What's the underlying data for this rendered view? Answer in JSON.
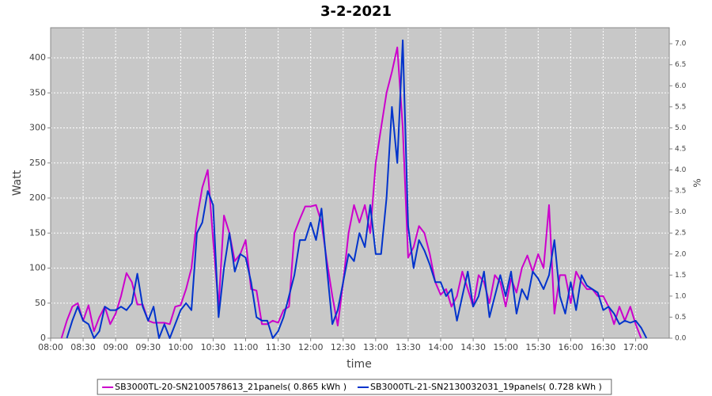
{
  "chart_data": {
    "type": "line",
    "title": "3-2-2021",
    "xlabel": "time",
    "ylabel": "Watt",
    "y2label": "%",
    "x": [
      "08:10",
      "08:15",
      "08:20",
      "08:25",
      "08:30",
      "08:35",
      "08:40",
      "08:45",
      "08:50",
      "08:55",
      "09:00",
      "09:05",
      "09:10",
      "09:15",
      "09:20",
      "09:25",
      "09:30",
      "09:35",
      "09:40",
      "09:45",
      "09:50",
      "09:55",
      "10:00",
      "10:05",
      "10:10",
      "10:15",
      "10:20",
      "10:25",
      "10:30",
      "10:35",
      "10:40",
      "10:45",
      "10:50",
      "10:55",
      "11:00",
      "11:05",
      "11:10",
      "11:15",
      "11:20",
      "11:25",
      "11:30",
      "11:35",
      "11:40",
      "11:45",
      "11:50",
      "11:55",
      "12:00",
      "12:05",
      "12:10",
      "12:15",
      "12:20",
      "12:25",
      "12:30",
      "12:35",
      "12:40",
      "12:45",
      "12:50",
      "12:55",
      "13:00",
      "13:05",
      "13:10",
      "13:15",
      "13:20",
      "13:25",
      "13:30",
      "13:35",
      "13:40",
      "13:45",
      "13:50",
      "13:55",
      "14:00",
      "14:05",
      "14:10",
      "14:15",
      "14:20",
      "14:25",
      "14:30",
      "14:35",
      "14:40",
      "14:45",
      "14:50",
      "14:55",
      "15:00",
      "15:05",
      "15:10",
      "15:15",
      "15:20",
      "15:25",
      "15:30",
      "15:35",
      "15:40",
      "15:45",
      "15:50",
      "15:55",
      "16:00",
      "16:05",
      "16:10",
      "16:15",
      "16:20",
      "16:25",
      "16:30",
      "16:35",
      "16:40",
      "16:45",
      "16:50",
      "16:55",
      "17:00",
      "17:05",
      "17:10"
    ],
    "series": [
      {
        "name": "SB3000TL-20-SN2100578613_21panels( 0.865 kWh )",
        "color": "#cc00cc",
        "values": [
          0,
          25,
          45,
          50,
          25,
          47,
          10,
          30,
          45,
          20,
          35,
          60,
          93,
          80,
          48,
          48,
          25,
          22,
          22,
          22,
          20,
          45,
          47,
          70,
          100,
          170,
          215,
          240,
          140,
          45,
          175,
          150,
          110,
          120,
          140,
          70,
          68,
          20,
          20,
          25,
          22,
          40,
          45,
          150,
          170,
          188,
          188,
          190,
          165,
          110,
          60,
          18,
          80,
          150,
          190,
          165,
          190,
          150,
          250,
          300,
          350,
          380,
          415,
          300,
          115,
          130,
          160,
          150,
          120,
          80,
          62,
          70,
          45,
          60,
          95,
          70,
          45,
          90,
          80,
          50,
          90,
          80,
          45,
          85,
          65,
          100,
          118,
          95,
          120,
          100,
          190,
          35,
          90,
          90,
          50,
          95,
          80,
          70,
          70,
          60,
          60,
          45,
          20,
          45,
          25,
          45,
          20,
          0,
          null
        ]
      },
      {
        "name": "SB3000TL-21-SN2130032031_19panels( 0.728 kWh )",
        "color": "#0033cc",
        "values": [
          null,
          0,
          25,
          45,
          25,
          20,
          0,
          10,
          45,
          40,
          40,
          45,
          40,
          50,
          92,
          45,
          25,
          45,
          0,
          20,
          0,
          20,
          40,
          50,
          40,
          150,
          165,
          210,
          190,
          30,
          100,
          150,
          95,
          120,
          115,
          80,
          30,
          25,
          25,
          0,
          10,
          30,
          60,
          90,
          140,
          140,
          165,
          140,
          185,
          100,
          20,
          40,
          80,
          120,
          110,
          150,
          130,
          190,
          120,
          120,
          200,
          330,
          250,
          425,
          160,
          100,
          140,
          125,
          105,
          80,
          80,
          60,
          70,
          25,
          60,
          95,
          45,
          60,
          95,
          30,
          60,
          90,
          60,
          95,
          35,
          70,
          55,
          95,
          85,
          70,
          90,
          140,
          60,
          35,
          80,
          40,
          90,
          75,
          70,
          65,
          40,
          45,
          35,
          20,
          25,
          22,
          25,
          15,
          0
        ]
      }
    ],
    "xlim": [
      "08:00",
      "17:31"
    ],
    "xticks": [
      "08:00",
      "08:30",
      "09:00",
      "09:30",
      "10:00",
      "10:30",
      "11:00",
      "11:30",
      "12:00",
      "12:30",
      "13:00",
      "13:30",
      "14:00",
      "14:30",
      "15:00",
      "15:30",
      "16:00",
      "16:30",
      "17:00"
    ],
    "ylim": [
      0,
      443
    ],
    "yticks": [
      0,
      50,
      100,
      150,
      200,
      250,
      300,
      350,
      400
    ],
    "y2lim": [
      0,
      7.38
    ],
    "y2ticks": [
      {
        "value": 0,
        "label": "0.0"
      },
      {
        "value": 0.5,
        "label": "0.5"
      },
      {
        "value": 1,
        "label": "1.0"
      },
      {
        "value": 1.5,
        "label": "1.5"
      },
      {
        "value": 2,
        "label": "2.0"
      },
      {
        "value": 2.5,
        "label": "2.5"
      },
      {
        "value": 3,
        "label": "3.0"
      },
      {
        "value": 3.5,
        "label": "3.5"
      },
      {
        "value": 4,
        "label": "4.0"
      },
      {
        "value": 4.5,
        "label": "4.5"
      },
      {
        "value": 5,
        "label": "5.0"
      },
      {
        "value": 5.5,
        "label": "5.5"
      },
      {
        "value": 6,
        "label": "6.0"
      },
      {
        "value": 6.5,
        "label": "6.5"
      },
      {
        "value": 7,
        "label": "7.0"
      }
    ],
    "grid": true,
    "legend": "bottom"
  }
}
